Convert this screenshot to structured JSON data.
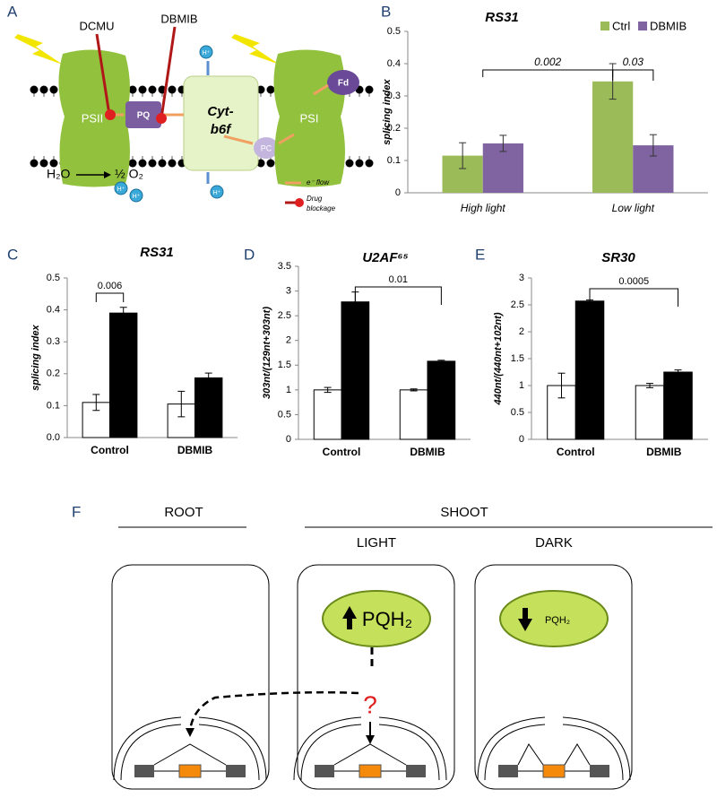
{
  "panel_labels": [
    "A",
    "B",
    "C",
    "D",
    "E",
    "F"
  ],
  "diagram_a": {
    "dcmu": "DCMU",
    "dbmib": "DBMIB",
    "psii": "PSII",
    "pq": "PQ",
    "cyt": [
      "Cyt-",
      "b6f"
    ],
    "pc": "PC",
    "psi": "PSI",
    "fd": "Fd",
    "proton": "H⁺",
    "water": "H₂O",
    "oxygen": "½ O₂",
    "flow": "e⁻ flow",
    "block": [
      "Drug",
      "blockage"
    ]
  },
  "chart_data": [
    {
      "type": "bar",
      "title": "RS31",
      "y_label": "splicing index",
      "categories": [
        "High light",
        "Low light"
      ],
      "series": [
        {
          "name": "Ctrl",
          "color": "#9bbb59",
          "values": [
            0.115,
            0.345
          ],
          "errors": [
            0.04,
            0.055
          ]
        },
        {
          "name": "DBMIB",
          "color": "#8064a2",
          "values": [
            0.153,
            0.147
          ],
          "errors": [
            0.025,
            0.033
          ]
        }
      ],
      "ylim": [
        0,
        0.5
      ],
      "yticks": [
        0,
        0.1,
        0.2,
        0.3,
        0.4,
        0.5
      ],
      "legend": "top-right",
      "annotations": [
        "0.002",
        "0.03"
      ]
    },
    {
      "type": "bar",
      "title": "RS31",
      "y_label": "splicing index",
      "categories": [
        "Control",
        "DBMIB"
      ],
      "series": [
        {
          "color": "#ffffff",
          "values": [
            0.11,
            0.105
          ],
          "errors": [
            0.025,
            0.04
          ]
        },
        {
          "color": "#000000",
          "values": [
            0.39,
            0.187
          ],
          "errors": [
            0.018,
            0.015
          ]
        }
      ],
      "ylim": [
        0,
        0.5
      ],
      "yticks": [
        {
          "value": 0,
          "label": "0.0"
        },
        0.1,
        0.2,
        0.3,
        0.4,
        0.5
      ],
      "annotations": [
        "0.006"
      ]
    },
    {
      "type": "bar",
      "title": "U2AF⁶⁵",
      "y_label": "303nt/(129nt+303nt)",
      "categories": [
        "Control",
        "DBMIB"
      ],
      "series": [
        {
          "color": "#ffffff",
          "values": [
            1.0,
            1.0
          ],
          "errors": [
            0.05,
            0.02
          ]
        },
        {
          "color": "#000000",
          "values": [
            2.78,
            1.58
          ],
          "errors": [
            0.2,
            0.02
          ]
        }
      ],
      "ylim": [
        0,
        3.5
      ],
      "yticks": [
        0,
        0.5,
        1,
        1.5,
        2,
        2.5,
        3,
        3.5
      ],
      "annotations": [
        "0.01"
      ]
    },
    {
      "type": "bar",
      "title": "SR30",
      "y_label": "440nt/(440nt+102nt)",
      "categories": [
        "Control",
        "DBMIB"
      ],
      "series": [
        {
          "color": "#ffffff",
          "values": [
            1.0,
            1.0
          ],
          "errors": [
            0.23,
            0.04
          ]
        },
        {
          "color": "#000000",
          "values": [
            2.57,
            1.25
          ],
          "errors": [
            0.02,
            0.04
          ]
        }
      ],
      "ylim": [
        0,
        3
      ],
      "yticks": [
        0,
        0.5,
        1,
        1.5,
        2,
        2.5,
        3
      ],
      "annotations": [
        "0.0005"
      ]
    }
  ],
  "diagram_f": {
    "root": "ROOT",
    "shoot": "SHOOT",
    "light": "LIGHT",
    "dark": "DARK",
    "pqh2": "PQH₂",
    "question": "?"
  }
}
